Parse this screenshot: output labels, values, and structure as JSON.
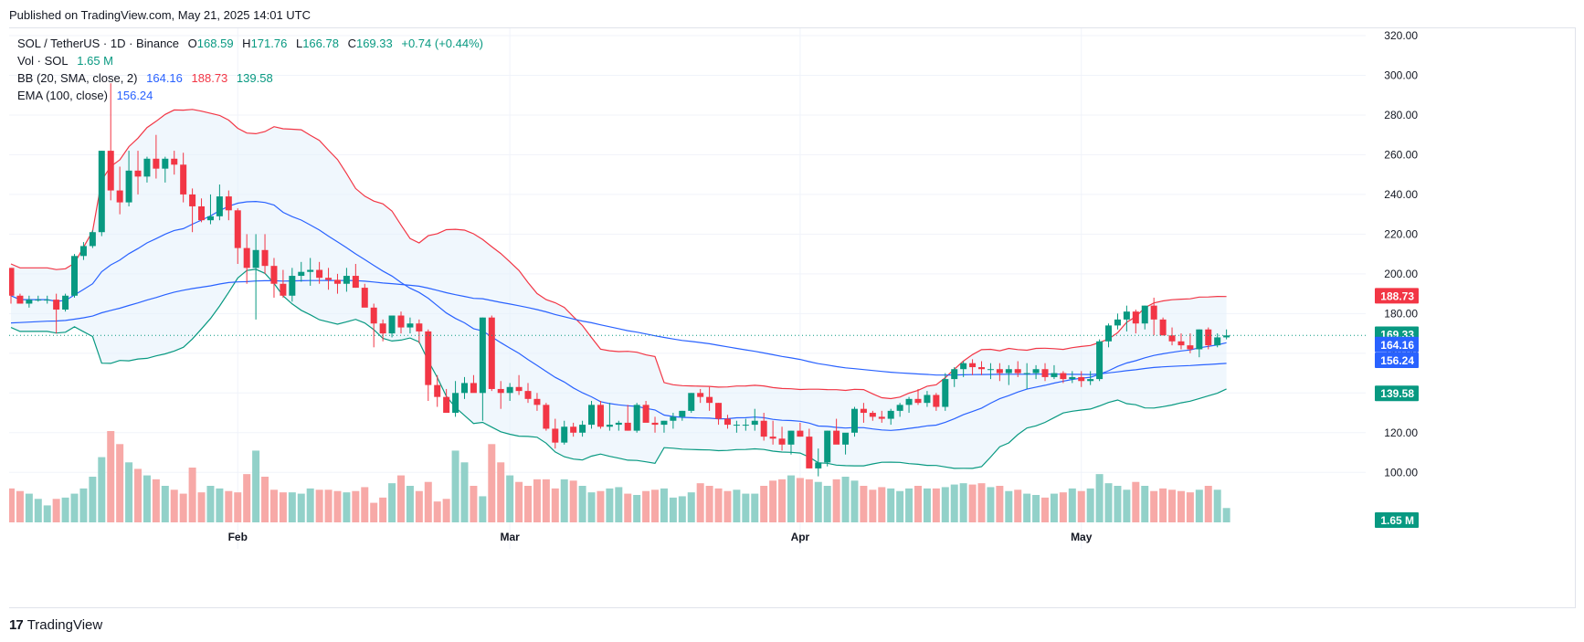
{
  "header": {
    "published": "Published on TradingView.com, May 21, 2025 14:01 UTC"
  },
  "footer": {
    "brand": "TradingView"
  },
  "legend": {
    "symbol": "SOL / TetherUS · 1D · Binance",
    "o_label": "O",
    "o": "168.59",
    "h_label": "H",
    "h": "171.76",
    "l_label": "L",
    "l": "166.78",
    "c_label": "C",
    "c": "169.33",
    "change": "+0.74 (+0.44%)",
    "vol_label": "Vol · SOL",
    "vol": "1.65 M",
    "bb_label": "BB (20, SMA, close, 2)",
    "bb_basis": "164.16",
    "bb_upper": "188.73",
    "bb_lower": "139.58",
    "ema_label": "EMA (100, close)",
    "ema": "156.24"
  },
  "colors": {
    "up": "#089981",
    "down": "#f23645",
    "bb_basis": "#2962ff",
    "bb_upper": "#f23645",
    "bb_lower": "#089981",
    "ema": "#2962ff",
    "bb_fill": "#e3f0fb",
    "vol_up": "#92d1c9",
    "vol_down": "#f7a9a7"
  },
  "chart_data": {
    "type": "candlestick",
    "symbol": "SOL / TetherUS",
    "interval": "1D",
    "exchange": "Binance",
    "ylim": [
      90,
      320
    ],
    "y_ticks": [
      100,
      120,
      140,
      160,
      180,
      200,
      220,
      240,
      260,
      280,
      300,
      320
    ],
    "x_labels": [
      "Feb",
      "Mar",
      "Apr",
      "May"
    ],
    "price_tags": [
      {
        "label": "188.73",
        "value": 188.73,
        "color": "#f23645"
      },
      {
        "label": "169.33",
        "value": 169.33,
        "color": "#089981"
      },
      {
        "label": "164.16",
        "value": 164.16,
        "color": "#2962ff"
      },
      {
        "label": "156.24",
        "value": 156.24,
        "color": "#2962ff"
      },
      {
        "label": "139.58",
        "value": 139.58,
        "color": "#089981"
      }
    ],
    "volume_tag": "1.65 M",
    "ohlc": [
      [
        203,
        203,
        185,
        189
      ],
      [
        189,
        190,
        185,
        185
      ],
      [
        185,
        189,
        183,
        187
      ],
      [
        187,
        189,
        186,
        187
      ],
      [
        187,
        189,
        185,
        187
      ],
      [
        187,
        190,
        170,
        182
      ],
      [
        182,
        190,
        181,
        189
      ],
      [
        189,
        210,
        188,
        209
      ],
      [
        209,
        216,
        207,
        214
      ],
      [
        214,
        222,
        213,
        221
      ],
      [
        221,
        262,
        219,
        262
      ],
      [
        262,
        296,
        237,
        242
      ],
      [
        242,
        254,
        230,
        236
      ],
      [
        236,
        262,
        234,
        252
      ],
      [
        252,
        262,
        240,
        249
      ],
      [
        249,
        259,
        246,
        258
      ],
      [
        258,
        270,
        248,
        253
      ],
      [
        253,
        259,
        246,
        258
      ],
      [
        258,
        262,
        250,
        255
      ],
      [
        255,
        261,
        236,
        240
      ],
      [
        240,
        243,
        221,
        234
      ],
      [
        234,
        238,
        226,
        227
      ],
      [
        227,
        240,
        225,
        229
      ],
      [
        229,
        245,
        227,
        239
      ],
      [
        239,
        242,
        227,
        232
      ],
      [
        232,
        233,
        205,
        213
      ],
      [
        213,
        220,
        195,
        203
      ],
      [
        203,
        220,
        177,
        212
      ],
      [
        212,
        220,
        200,
        204
      ],
      [
        204,
        208,
        188,
        195
      ],
      [
        195,
        202,
        188,
        189
      ],
      [
        189,
        203,
        186,
        199
      ],
      [
        199,
        206,
        196,
        201
      ],
      [
        201,
        208,
        194,
        202
      ],
      [
        202,
        206,
        195,
        198
      ],
      [
        198,
        203,
        192,
        197
      ],
      [
        197,
        200,
        190,
        195
      ],
      [
        195,
        203,
        191,
        199
      ],
      [
        199,
        205,
        193,
        193
      ],
      [
        193,
        195,
        184,
        183
      ],
      [
        183,
        185,
        163,
        175
      ],
      [
        175,
        177,
        166,
        170
      ],
      [
        170,
        178,
        168,
        179
      ],
      [
        179,
        181,
        170,
        173
      ],
      [
        173,
        178,
        170,
        175
      ],
      [
        175,
        177,
        165,
        171
      ],
      [
        171,
        172,
        136,
        144
      ],
      [
        144,
        149,
        133,
        138
      ],
      [
        138,
        142,
        131,
        130
      ],
      [
        130,
        146,
        128,
        140
      ],
      [
        140,
        148,
        137,
        145
      ],
      [
        145,
        149,
        141,
        140
      ],
      [
        140,
        178,
        126,
        178
      ],
      [
        178,
        179,
        141,
        142
      ],
      [
        142,
        146,
        132,
        140
      ],
      [
        140,
        145,
        136,
        143
      ],
      [
        143,
        149,
        139,
        141
      ],
      [
        141,
        145,
        135,
        137
      ],
      [
        137,
        140,
        131,
        134
      ],
      [
        134,
        135,
        121,
        122
      ],
      [
        122,
        127,
        112,
        115
      ],
      [
        115,
        126,
        114,
        123
      ],
      [
        123,
        125,
        118,
        120
      ],
      [
        120,
        126,
        118,
        124
      ],
      [
        124,
        136,
        122,
        134
      ],
      [
        134,
        136,
        122,
        123
      ],
      [
        123,
        135,
        121,
        124
      ],
      [
        124,
        126,
        121,
        125
      ],
      [
        125,
        134,
        121,
        121
      ],
      [
        121,
        135,
        120,
        134
      ],
      [
        134,
        136,
        126,
        125
      ],
      [
        125,
        128,
        120,
        124
      ],
      [
        124,
        126,
        120,
        126
      ],
      [
        126,
        130,
        122,
        128
      ],
      [
        128,
        131,
        126,
        131
      ],
      [
        131,
        140,
        130,
        140
      ],
      [
        140,
        142,
        135,
        138
      ],
      [
        138,
        143,
        131,
        135
      ],
      [
        135,
        135,
        124,
        127
      ],
      [
        127,
        129,
        122,
        124
      ],
      [
        124,
        126,
        120,
        124
      ],
      [
        124,
        127,
        121,
        124
      ],
      [
        124,
        132,
        121,
        126
      ],
      [
        126,
        130,
        116,
        118
      ],
      [
        118,
        126,
        114,
        117
      ],
      [
        117,
        123,
        111,
        114
      ],
      [
        114,
        121,
        109,
        121
      ],
      [
        121,
        125,
        118,
        118
      ],
      [
        118,
        122,
        102,
        102
      ],
      [
        102,
        112,
        98,
        105
      ],
      [
        105,
        121,
        103,
        121
      ],
      [
        121,
        127,
        115,
        114
      ],
      [
        114,
        118,
        109,
        120
      ],
      [
        120,
        133,
        118,
        132
      ],
      [
        132,
        135,
        125,
        130
      ],
      [
        130,
        131,
        126,
        128
      ],
      [
        128,
        131,
        125,
        127
      ],
      [
        127,
        132,
        124,
        131
      ],
      [
        131,
        135,
        128,
        134
      ],
      [
        134,
        138,
        130,
        137
      ],
      [
        137,
        142,
        134,
        135
      ],
      [
        135,
        141,
        133,
        139
      ],
      [
        139,
        140,
        131,
        133
      ],
      [
        133,
        150,
        131,
        147
      ],
      [
        147,
        153,
        143,
        152
      ],
      [
        152,
        156,
        148,
        155
      ],
      [
        155,
        157,
        149,
        153
      ],
      [
        153,
        156,
        149,
        152
      ],
      [
        152,
        155,
        147,
        152
      ],
      [
        152,
        155,
        146,
        150
      ],
      [
        150,
        154,
        144,
        152
      ],
      [
        152,
        156,
        148,
        150
      ],
      [
        150,
        155,
        142,
        150
      ],
      [
        150,
        154,
        147,
        152
      ],
      [
        152,
        155,
        146,
        148
      ],
      [
        148,
        154,
        147,
        150
      ],
      [
        150,
        151,
        145,
        147
      ],
      [
        147,
        151,
        145,
        148
      ],
      [
        148,
        151,
        143,
        146
      ],
      [
        146,
        151,
        144,
        147
      ],
      [
        147,
        167,
        146,
        166
      ],
      [
        166,
        175,
        163,
        174
      ],
      [
        174,
        180,
        172,
        177
      ],
      [
        177,
        184,
        171,
        181
      ],
      [
        181,
        182,
        170,
        175
      ],
      [
        175,
        184,
        172,
        184
      ],
      [
        184,
        188,
        169,
        177
      ],
      [
        177,
        178,
        169,
        169
      ],
      [
        169,
        173,
        164,
        166
      ],
      [
        166,
        170,
        162,
        164
      ],
      [
        164,
        170,
        160,
        162
      ],
      [
        162,
        172,
        158,
        172
      ],
      [
        172,
        173,
        162,
        164
      ],
      [
        164,
        170,
        163,
        168
      ],
      [
        168,
        172,
        167,
        169
      ]
    ],
    "volume": [
      0.52,
      0.48,
      0.44,
      0.36,
      0.26,
      0.36,
      0.38,
      0.44,
      0.52,
      0.7,
      1.0,
      1.4,
      1.2,
      0.92,
      0.82,
      0.72,
      0.66,
      0.56,
      0.5,
      0.44,
      0.84,
      0.46,
      0.56,
      0.52,
      0.48,
      0.46,
      0.74,
      1.1,
      0.7,
      0.5,
      0.46,
      0.46,
      0.44,
      0.52,
      0.5,
      0.5,
      0.48,
      0.46,
      0.48,
      0.54,
      0.3,
      0.38,
      0.6,
      0.72,
      0.56,
      0.48,
      0.62,
      0.32,
      0.36,
      1.1,
      0.92,
      0.56,
      0.4,
      1.2,
      0.92,
      0.72,
      0.62,
      0.56,
      0.66,
      0.66,
      0.52,
      0.66,
      0.64,
      0.56,
      0.46,
      0.48,
      0.52,
      0.54,
      0.44,
      0.42,
      0.48,
      0.5,
      0.52,
      0.38,
      0.4,
      0.46,
      0.6,
      0.56,
      0.52,
      0.48,
      0.5,
      0.44,
      0.44,
      0.56,
      0.64,
      0.66,
      0.72,
      0.68,
      0.66,
      0.62,
      0.56,
      0.66,
      0.7,
      0.64,
      0.56,
      0.5,
      0.54,
      0.52,
      0.48,
      0.52,
      0.56,
      0.52,
      0.52,
      0.54,
      0.58,
      0.6,
      0.58,
      0.6,
      0.54,
      0.56,
      0.48,
      0.5,
      0.44,
      0.42,
      0.38,
      0.44,
      0.46,
      0.52,
      0.48,
      0.52,
      0.74,
      0.6,
      0.56,
      0.5,
      0.62,
      0.56,
      0.48,
      0.52,
      0.5,
      0.48,
      0.46,
      0.5,
      0.56,
      0.5,
      0.22
    ]
  }
}
